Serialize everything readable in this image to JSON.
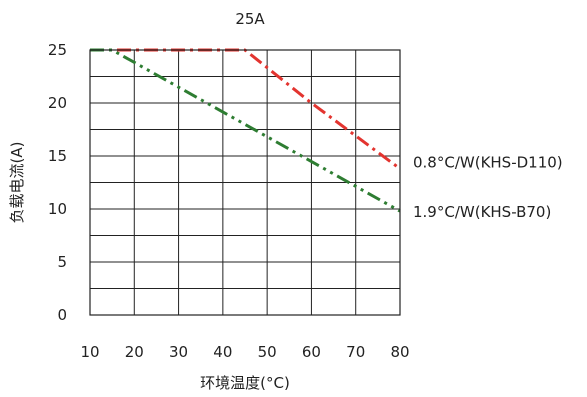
{
  "chart_data": {
    "type": "line",
    "title": "25A",
    "xlabel": "环境温度(°C)",
    "ylabel": "负载电流(A)",
    "xlim": [
      10,
      80
    ],
    "ylim": [
      0,
      25
    ],
    "x_ticks": [
      10,
      20,
      30,
      40,
      50,
      60,
      70,
      80
    ],
    "x_tick_labels": [
      "10",
      "20",
      "30",
      "40",
      "50",
      "60",
      "70",
      "80"
    ],
    "y_ticks": [
      0,
      5,
      10,
      15,
      20,
      25
    ],
    "y_tick_labels": [
      "0",
      "5",
      "10",
      "15",
      "20",
      "25"
    ],
    "grid": true,
    "series": [
      {
        "name": "0.8°C/W(KHS-D110)",
        "color": "#e3342f",
        "style": "dash-dot",
        "x": [
          10,
          45,
          60,
          80
        ],
        "y": [
          25,
          25,
          20,
          13.8
        ]
      },
      {
        "name": "1.9°C/W(KHS-B70)",
        "color": "#2e7d32",
        "style": "dash-dot-dot",
        "x": [
          10,
          15,
          80
        ],
        "y": [
          25,
          25,
          9.8
        ]
      }
    ]
  }
}
